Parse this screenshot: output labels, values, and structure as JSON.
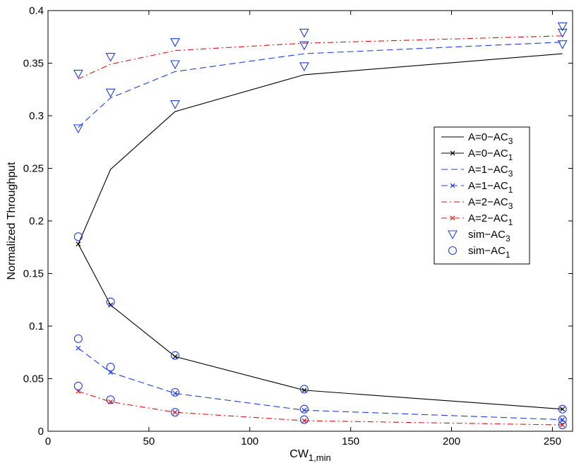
{
  "chart_data": {
    "type": "line",
    "title": "",
    "xlabel": {
      "main": "CW",
      "sub": "1,min"
    },
    "ylabel": "Normalized Throughput",
    "xlim": [
      0,
      260
    ],
    "ylim": [
      0,
      0.4
    ],
    "xticks": [
      0,
      50,
      100,
      150,
      200,
      250
    ],
    "xtick_labels": [
      "0",
      "50",
      "100",
      "150",
      "200",
      "250"
    ],
    "yticks": [
      0,
      0.05,
      0.1,
      0.15,
      0.2,
      0.25,
      0.3,
      0.35,
      0.4
    ],
    "ytick_labels": [
      "0",
      "0.05",
      "0.1",
      "0.15",
      "0.2",
      "0.25",
      "0.3",
      "0.35",
      "0.4"
    ],
    "grid": false,
    "legend_position": "right",
    "series": [
      {
        "name": {
          "main": "A=0−AC",
          "sub": "3"
        },
        "color": "#000000",
        "dash": "solid",
        "marker": "none",
        "x": [
          15,
          31,
          63,
          127,
          255
        ],
        "y": [
          0.178,
          0.249,
          0.304,
          0.339,
          0.359
        ]
      },
      {
        "name": {
          "main": "A=0−AC",
          "sub": "1"
        },
        "color": "#000000",
        "dash": "solid",
        "marker": "x",
        "x": [
          15,
          31,
          63,
          127,
          255
        ],
        "y": [
          0.178,
          0.12,
          0.071,
          0.039,
          0.021
        ]
      },
      {
        "name": {
          "main": "A=1−AC",
          "sub": "3"
        },
        "color": "#1f3fe0",
        "dash": "dashed",
        "marker": "none",
        "x": [
          15,
          31,
          63,
          127,
          255
        ],
        "y": [
          0.289,
          0.317,
          0.342,
          0.359,
          0.37
        ]
      },
      {
        "name": {
          "main": "A=1−AC",
          "sub": "1"
        },
        "color": "#1f3fe0",
        "dash": "dashed",
        "marker": "x",
        "x": [
          15,
          31,
          63,
          127,
          255
        ],
        "y": [
          0.079,
          0.056,
          0.036,
          0.02,
          0.011
        ]
      },
      {
        "name": {
          "main": "A=2−AC",
          "sub": "3"
        },
        "color": "#e01010",
        "dash": "dashdot",
        "marker": "none",
        "x": [
          15,
          31,
          63,
          127,
          255
        ],
        "y": [
          0.335,
          0.349,
          0.362,
          0.369,
          0.376
        ]
      },
      {
        "name": {
          "main": "A=2−AC",
          "sub": "1"
        },
        "color": "#e01010",
        "dash": "dashdot",
        "marker": "x",
        "x": [
          15,
          31,
          63,
          127,
          255
        ],
        "y": [
          0.038,
          0.028,
          0.018,
          0.01,
          0.006
        ]
      },
      {
        "name": {
          "main": "sim−AC",
          "sub": "3"
        },
        "color": "#1f3fe0",
        "dash": "none",
        "marker": "triangle-down",
        "x": [
          15,
          15,
          31,
          31,
          63,
          63,
          63,
          127,
          127,
          127,
          255,
          255,
          255
        ],
        "y": [
          0.34,
          0.288,
          0.356,
          0.322,
          0.37,
          0.349,
          0.311,
          0.379,
          0.367,
          0.347,
          0.385,
          0.379,
          0.368
        ]
      },
      {
        "name": {
          "main": "sim−AC",
          "sub": "1"
        },
        "color": "#1f3fe0",
        "dash": "none",
        "marker": "circle",
        "x": [
          15,
          15,
          15,
          31,
          31,
          31,
          63,
          63,
          63,
          127,
          127,
          127,
          255,
          255,
          255
        ],
        "y": [
          0.185,
          0.088,
          0.043,
          0.123,
          0.061,
          0.03,
          0.072,
          0.037,
          0.018,
          0.04,
          0.021,
          0.011,
          0.021,
          0.011,
          0.006
        ]
      }
    ]
  }
}
